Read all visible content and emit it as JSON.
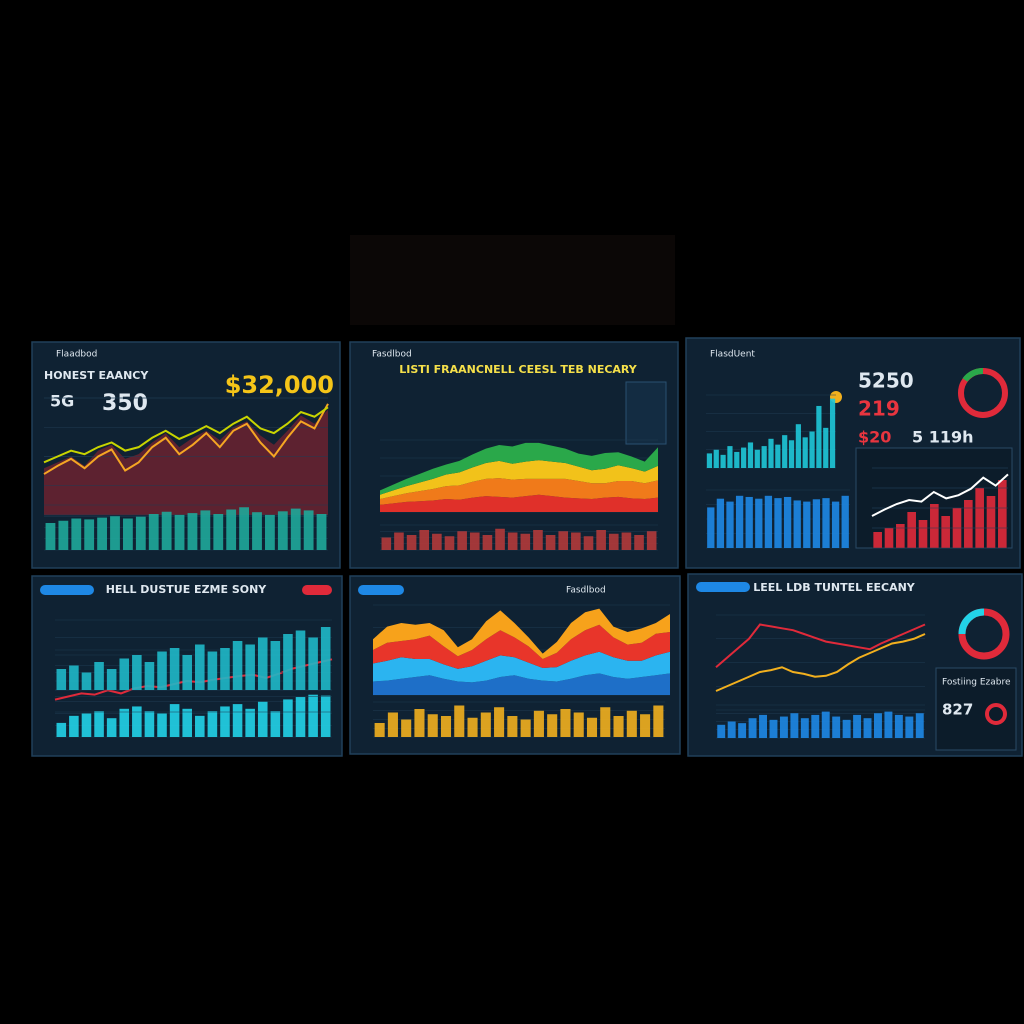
{
  "panels": [
    {
      "header": "Flaadbod",
      "title": "HONEST EAANCY",
      "kpi_small": "5G",
      "kpi": "350",
      "big": "$32,000",
      "charts": [
        {
          "type": "area",
          "ylim": [
            0,
            100
          ],
          "series": [
            {
              "color": "#6b2230",
              "values": [
                40,
                45,
                50,
                42,
                55,
                60,
                48,
                52,
                62,
                70,
                58,
                66,
                72,
                64,
                75,
                80,
                68,
                60,
                72,
                85,
                78,
                90
              ]
            }
          ]
        },
        {
          "type": "line",
          "ylim": [
            0,
            100
          ],
          "series": [
            {
              "color": "#f5a623",
              "values": [
                35,
                42,
                48,
                40,
                50,
                56,
                38,
                45,
                58,
                66,
                52,
                60,
                70,
                58,
                72,
                78,
                62,
                50,
                66,
                80,
                74,
                95
              ]
            },
            {
              "color": "#c8d400",
              "values": [
                45,
                50,
                55,
                52,
                58,
                62,
                55,
                58,
                66,
                72,
                65,
                70,
                76,
                70,
                78,
                84,
                74,
                70,
                78,
                88,
                84,
                92
              ]
            }
          ]
        },
        {
          "type": "bar",
          "ylim": [
            0,
            100
          ],
          "series": [
            {
              "color": "#1fa89a",
              "values": [
                60,
                65,
                70,
                68,
                72,
                75,
                70,
                74,
                80,
                85,
                78,
                82,
                88,
                80,
                90,
                95,
                84,
                78,
                86,
                92,
                88,
                80
              ]
            }
          ]
        }
      ]
    },
    {
      "header": "Fasdlbod",
      "title": "LISTI FRAANCNELL CEESL TEB NECARY",
      "charts": [
        {
          "type": "stacked-area",
          "ylim": [
            0,
            100
          ],
          "series": [
            {
              "color": "#e0302a",
              "values": [
                10,
                12,
                14,
                15,
                16,
                18,
                17,
                20,
                22,
                21,
                20,
                22,
                24,
                22,
                20,
                19,
                18,
                20,
                21,
                19,
                18,
                20
              ]
            },
            {
              "color": "#f07a1a",
              "values": [
                8,
                10,
                12,
                14,
                16,
                18,
                20,
                22,
                24,
                26,
                25,
                24,
                22,
                24,
                26,
                24,
                22,
                20,
                22,
                24,
                22,
                24
              ]
            },
            {
              "color": "#f2c21a",
              "values": [
                6,
                8,
                10,
                12,
                14,
                16,
                18,
                20,
                22,
                24,
                22,
                24,
                26,
                24,
                22,
                20,
                18,
                20,
                22,
                18,
                16,
                20
              ]
            },
            {
              "color": "#2aa84a",
              "values": [
                6,
                8,
                10,
                12,
                14,
                14,
                16,
                18,
                20,
                22,
                24,
                26,
                24,
                22,
                20,
                18,
                20,
                22,
                18,
                16,
                14,
                26
              ]
            }
          ]
        },
        {
          "type": "bar",
          "ylim": [
            0,
            100
          ],
          "series": [
            {
              "color": "#b33a3a",
              "values": [
                50,
                70,
                60,
                80,
                65,
                55,
                75,
                70,
                60,
                85,
                70,
                65,
                80,
                60,
                75,
                70,
                55,
                80,
                65,
                70,
                60,
                75
              ]
            }
          ]
        }
      ]
    },
    {
      "header": "FlasdUent",
      "kpi": "5250",
      "kpi_red": "219",
      "kpi_small": "$20",
      "kpi_side": "5 119h",
      "charts": [
        {
          "type": "bar",
          "ylim": [
            0,
            100
          ],
          "series": [
            {
              "color": "#1fc8d8",
              "values": [
                20,
                25,
                18,
                30,
                22,
                28,
                35,
                25,
                30,
                40,
                32,
                45,
                38,
                60,
                42,
                50,
                85,
                55,
                95
              ]
            }
          ]
        },
        {
          "type": "bar",
          "ylim": [
            0,
            100
          ],
          "series": [
            {
              "color": "#1e88e5",
              "values": [
                70,
                85,
                80,
                90,
                88,
                85,
                90,
                86,
                88,
                82,
                80,
                84,
                86,
                80,
                90
              ]
            }
          ]
        },
        {
          "type": "bar",
          "ylim": [
            0,
            100
          ],
          "series": [
            {
              "color": "#e02a3a",
              "values": [
                20,
                25,
                30,
                45,
                35,
                55,
                40,
                50,
                60,
                75,
                65,
                85
              ]
            }
          ]
        },
        {
          "type": "line",
          "ylim": [
            0,
            100
          ],
          "series": [
            {
              "color": "#ffffff",
              "values": [
                40,
                48,
                55,
                60,
                58,
                70,
                62,
                66,
                74,
                88,
                78,
                92
              ]
            }
          ]
        }
      ]
    },
    {
      "title": "HELL DUSTUE EZME SONY",
      "charts": [
        {
          "type": "bar",
          "ylim": [
            0,
            100
          ],
          "series": [
            {
              "color": "#22d3e8",
              "values": [
                30,
                45,
                50,
                55,
                40,
                60,
                65,
                55,
                50,
                70,
                60,
                45,
                55,
                65,
                70,
                60,
                75,
                55,
                80,
                85,
                90,
                88
              ]
            }
          ]
        },
        {
          "type": "line",
          "ylim": [
            0,
            100
          ],
          "series": [
            {
              "color": "#e02a3a",
              "values": [
                20,
                25,
                30,
                28,
                35,
                30,
                38,
                42,
                40,
                45,
                50,
                48,
                52,
                55,
                58,
                60,
                55,
                62,
                70,
                75,
                80,
                85
              ]
            }
          ]
        },
        {
          "type": "bar",
          "ylim": [
            0,
            100
          ],
          "series": [
            {
              "color": "#1fb8c8",
              "values": [
                30,
                35,
                25,
                40,
                30,
                45,
                50,
                40,
                55,
                60,
                50,
                65,
                55,
                60,
                70,
                65,
                75,
                70,
                80,
                85,
                75,
                90
              ]
            }
          ]
        }
      ]
    },
    {
      "header": "Fasdlbod",
      "charts": [
        {
          "type": "stacked-area",
          "ylim": [
            0,
            100
          ],
          "series": [
            {
              "color": "#1e6fc8",
              "values": [
                15,
                16,
                18,
                20,
                22,
                18,
                15,
                14,
                16,
                20,
                22,
                18,
                16,
                15,
                18,
                22,
                24,
                20,
                18,
                20,
                22,
                24
              ]
            },
            {
              "color": "#2bb4f0",
              "values": [
                20,
                22,
                24,
                20,
                18,
                16,
                14,
                18,
                22,
                24,
                20,
                18,
                14,
                16,
                20,
                22,
                24,
                22,
                20,
                18,
                22,
                24
              ]
            },
            {
              "color": "#e8352a",
              "values": [
                15,
                20,
                18,
                22,
                26,
                20,
                14,
                18,
                24,
                28,
                22,
                18,
                10,
                16,
                24,
                28,
                30,
                22,
                18,
                20,
                24,
                22
              ]
            },
            {
              "color": "#f7a21b",
              "values": [
                12,
                18,
                20,
                16,
                14,
                18,
                10,
                12,
                20,
                22,
                16,
                10,
                6,
                12,
                18,
                20,
                18,
                12,
                14,
                16,
                12,
                20
              ]
            }
          ]
        },
        {
          "type": "bar",
          "ylim": [
            0,
            100
          ],
          "series": [
            {
              "color": "#f2b01e",
              "values": [
                40,
                70,
                50,
                80,
                65,
                60,
                90,
                55,
                70,
                85,
                60,
                50,
                75,
                65,
                80,
                70,
                55,
                85,
                60,
                75,
                65,
                90
              ]
            }
          ]
        }
      ]
    },
    {
      "title": "LEEL LDB TUNTEL EECANY",
      "side_title": "Fostiing Ezabre",
      "kpi": "827",
      "charts": [
        {
          "type": "bar",
          "ylim": [
            0,
            100
          ],
          "series": [
            {
              "color": "#1e88e5",
              "values": [
                40,
                50,
                45,
                60,
                70,
                55,
                65,
                75,
                60,
                70,
                80,
                65,
                55,
                70,
                60,
                75,
                80,
                70,
                65,
                75
              ]
            }
          ]
        },
        {
          "type": "line",
          "ylim": [
            0,
            100
          ],
          "series": [
            {
              "color": "#f2b01e",
              "values": [
                20,
                25,
                30,
                35,
                40,
                42,
                45,
                40,
                38,
                35,
                36,
                40,
                48,
                55,
                60,
                65,
                70,
                72,
                75,
                80
              ]
            },
            {
              "color": "#e02a3a",
              "values": [
                45,
                55,
                65,
                75,
                90,
                88,
                86,
                84,
                80,
                76,
                72,
                70,
                68,
                66,
                64,
                70,
                75,
                80,
                85,
                90
              ]
            }
          ]
        }
      ]
    }
  ]
}
